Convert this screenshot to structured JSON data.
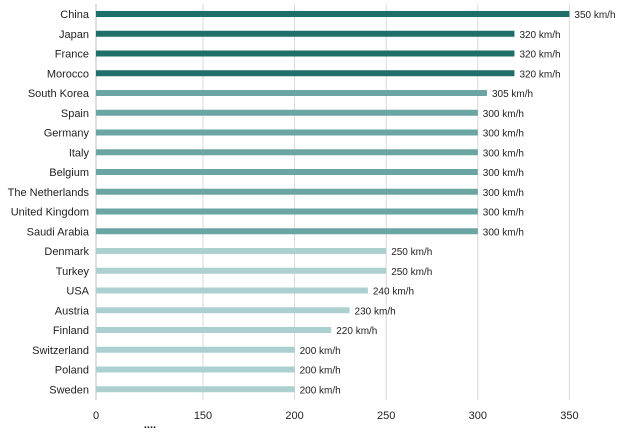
{
  "chart_data": {
    "type": "bar",
    "orientation": "horizontal",
    "categories": [
      "China",
      "Japan",
      "France",
      "Morocco",
      "South Korea",
      "Spain",
      "Germany",
      "Italy",
      "Belgium",
      "The Netherlands",
      "United Kingdom",
      "Saudi Arabia",
      "Denmark",
      "Turkey",
      "USA",
      "Austria",
      "Finland",
      "Switzerland",
      "Poland",
      "Sweden"
    ],
    "values": [
      350,
      320,
      320,
      320,
      305,
      300,
      300,
      300,
      300,
      300,
      300,
      300,
      250,
      250,
      240,
      230,
      220,
      200,
      200,
      200
    ],
    "value_labels": [
      "350 km/h",
      "320 km/h",
      "320 km/h",
      "320 km/h",
      "305 km/h",
      "300 km/h",
      "300 km/h",
      "300 km/h",
      "300 km/h",
      "300 km/h",
      "300 km/h",
      "300 km/h",
      "250 km/h",
      "250 km/h",
      "240 km/h",
      "230 km/h",
      "220 km/h",
      "200 km/h",
      "200 km/h",
      "200 km/h"
    ],
    "x_ticks": [
      0,
      150,
      200,
      250,
      300,
      350
    ],
    "axis_break_label": "....",
    "xlim": [
      0,
      350
    ],
    "grid": true,
    "colors": {
      "dark": "#1f6e69",
      "medium": "#6aa5a3",
      "light": "#abd0cf",
      "grid": "#d9d9d9",
      "text": "#222222"
    },
    "color_groups": [
      "dark",
      "dark",
      "dark",
      "dark",
      "medium",
      "medium",
      "medium",
      "medium",
      "medium",
      "medium",
      "medium",
      "medium",
      "light",
      "light",
      "light",
      "light",
      "light",
      "light",
      "light",
      "light"
    ]
  }
}
